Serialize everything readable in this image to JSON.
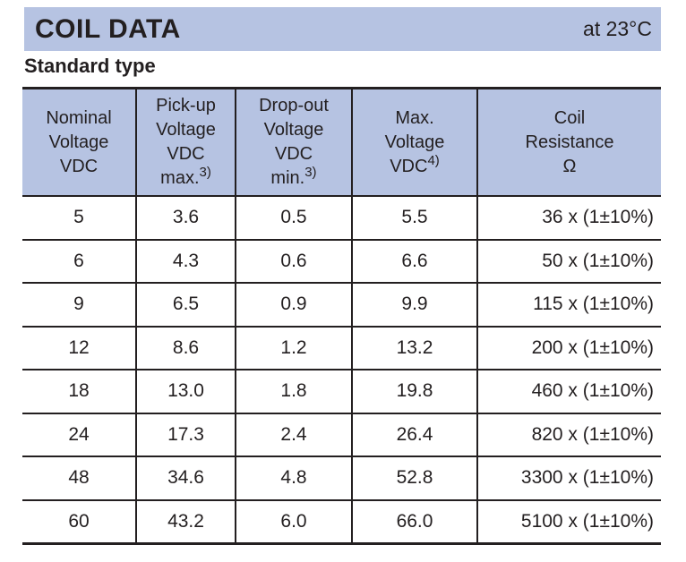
{
  "header": {
    "title": "COIL DATA",
    "condition": "at 23°C"
  },
  "section": {
    "subtitle": "Standard type"
  },
  "colors": {
    "accent_fill": "#b6c3e2",
    "border": "#231f20",
    "text": "#231f20"
  },
  "table": {
    "columns": [
      {
        "lines": [
          "Nominal",
          "Voltage",
          "VDC"
        ]
      },
      {
        "lines": [
          "Pick-up",
          "Voltage",
          "VDC"
        ],
        "note_base": "max.",
        "note_sup": "3)"
      },
      {
        "lines": [
          "Drop-out",
          "Voltage",
          "VDC"
        ],
        "note_base": "min.",
        "note_sup": "3)"
      },
      {
        "lines": [
          "Max.",
          "Voltage"
        ],
        "note_base": "VDC",
        "note_sup": "4)"
      },
      {
        "lines": [
          "Coil",
          "Resistance",
          "Ω"
        ]
      }
    ],
    "rows": [
      [
        "5",
        "3.6",
        "0.5",
        "5.5",
        "36 x (1±10%)"
      ],
      [
        "6",
        "4.3",
        "0.6",
        "6.6",
        "50 x (1±10%)"
      ],
      [
        "9",
        "6.5",
        "0.9",
        "9.9",
        "115 x (1±10%)"
      ],
      [
        "12",
        "8.6",
        "1.2",
        "13.2",
        "200 x (1±10%)"
      ],
      [
        "18",
        "13.0",
        "1.8",
        "19.8",
        "460 x (1±10%)"
      ],
      [
        "24",
        "17.3",
        "2.4",
        "26.4",
        "820 x (1±10%)"
      ],
      [
        "48",
        "34.6",
        "4.8",
        "52.8",
        "3300 x (1±10%)"
      ],
      [
        "60",
        "43.2",
        "6.0",
        "66.0",
        "5100 x (1±10%)"
      ]
    ]
  }
}
